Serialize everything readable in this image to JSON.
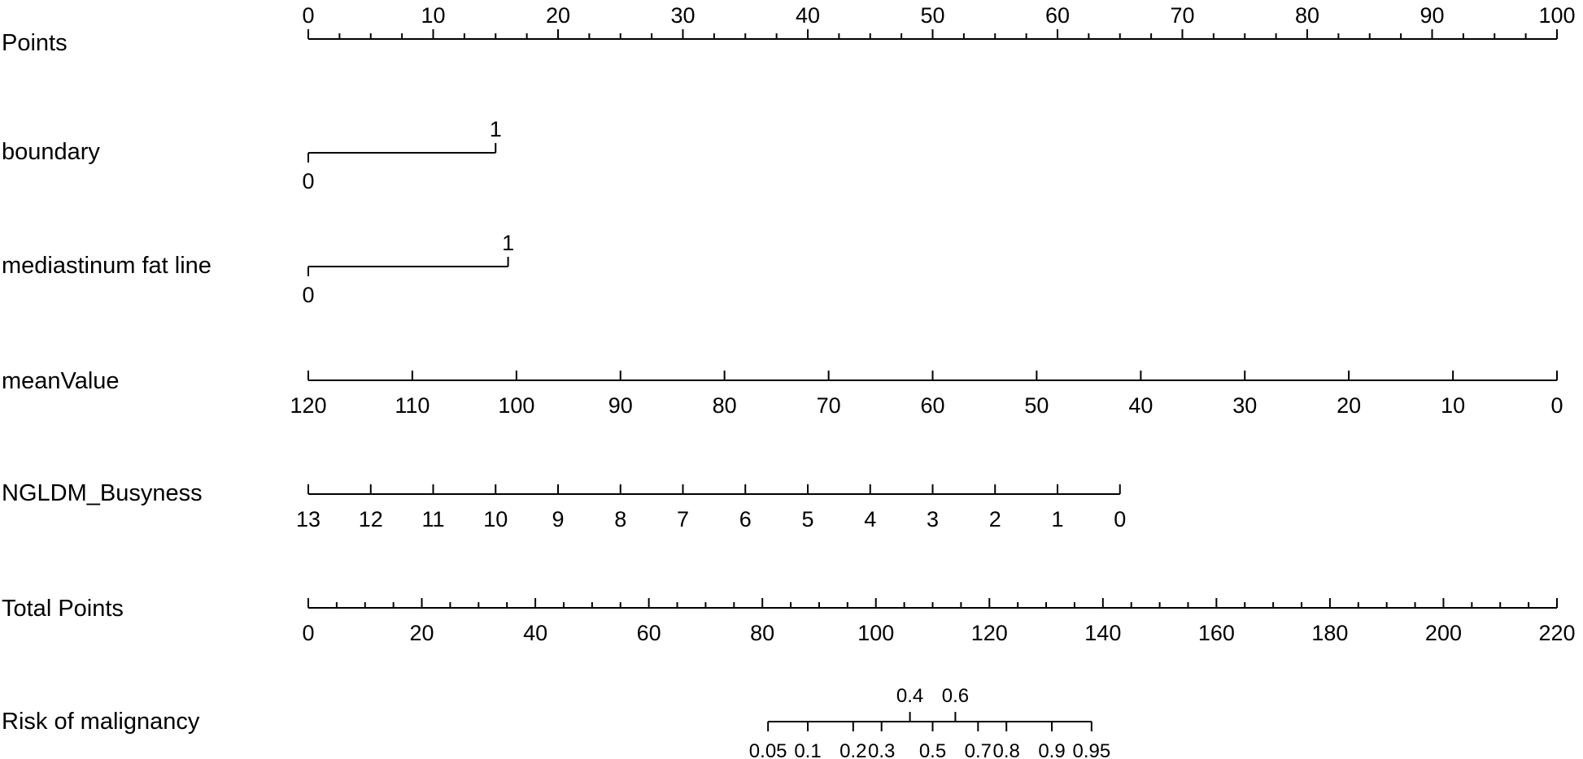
{
  "chart_data": {
    "type": "nomogram",
    "rows": [
      {
        "name": "Points",
        "scale": {
          "type": "linear",
          "min": 0,
          "max": 100
        },
        "ticks": [
          0,
          10,
          20,
          30,
          40,
          50,
          60,
          70,
          80,
          90,
          100
        ],
        "minor_step": 2.5,
        "label_position": "above"
      },
      {
        "name": "boundary",
        "type": "categorical",
        "levels": [
          {
            "label": "0",
            "points": 0
          },
          {
            "label": "1",
            "points": 15
          }
        ]
      },
      {
        "name": "mediastinum fat line",
        "type": "categorical",
        "levels": [
          {
            "label": "0",
            "points": 0
          },
          {
            "label": "1",
            "points": 16
          }
        ]
      },
      {
        "name": "meanValue",
        "ticks": [
          120,
          110,
          100,
          90,
          80,
          70,
          60,
          50,
          40,
          30,
          20,
          10,
          0
        ],
        "points_at_ticks": [
          0,
          8.33,
          16.67,
          25,
          33.33,
          41.67,
          50,
          58.33,
          66.67,
          75,
          83.33,
          91.67,
          100
        ],
        "label_position": "below"
      },
      {
        "name": "NGLDM_Busyness",
        "ticks": [
          13,
          12,
          11,
          10,
          9,
          8,
          7,
          6,
          5,
          4,
          3,
          2,
          1,
          0
        ],
        "points_at_ticks": [
          0,
          5,
          10,
          15,
          20,
          25,
          30,
          35,
          40,
          45,
          50,
          55,
          60,
          65
        ],
        "label_position": "below"
      },
      {
        "name": "Total Points",
        "scale": {
          "type": "linear",
          "min": 0,
          "max": 220
        },
        "ticks": [
          0,
          20,
          40,
          60,
          80,
          100,
          120,
          140,
          160,
          180,
          200,
          220
        ],
        "minor_step": 5,
        "label_position": "below"
      },
      {
        "name": "Risk of malignancy",
        "ticks": [
          {
            "label": "0.05",
            "total_points": 81
          },
          {
            "label": "0.1",
            "total_points": 88
          },
          {
            "label": "0.2",
            "total_points": 96
          },
          {
            "label": "0.3",
            "total_points": 101
          },
          {
            "label": "0.4",
            "total_points": 106,
            "label_position": "above"
          },
          {
            "label": "0.5",
            "total_points": 110
          },
          {
            "label": "0.6",
            "total_points": 114,
            "label_position": "above"
          },
          {
            "label": "0.7",
            "total_points": 118
          },
          {
            "label": "0.8",
            "total_points": 123
          },
          {
            "label": "0.9",
            "total_points": 131
          },
          {
            "label": "0.95",
            "total_points": 138
          }
        ]
      }
    ]
  }
}
